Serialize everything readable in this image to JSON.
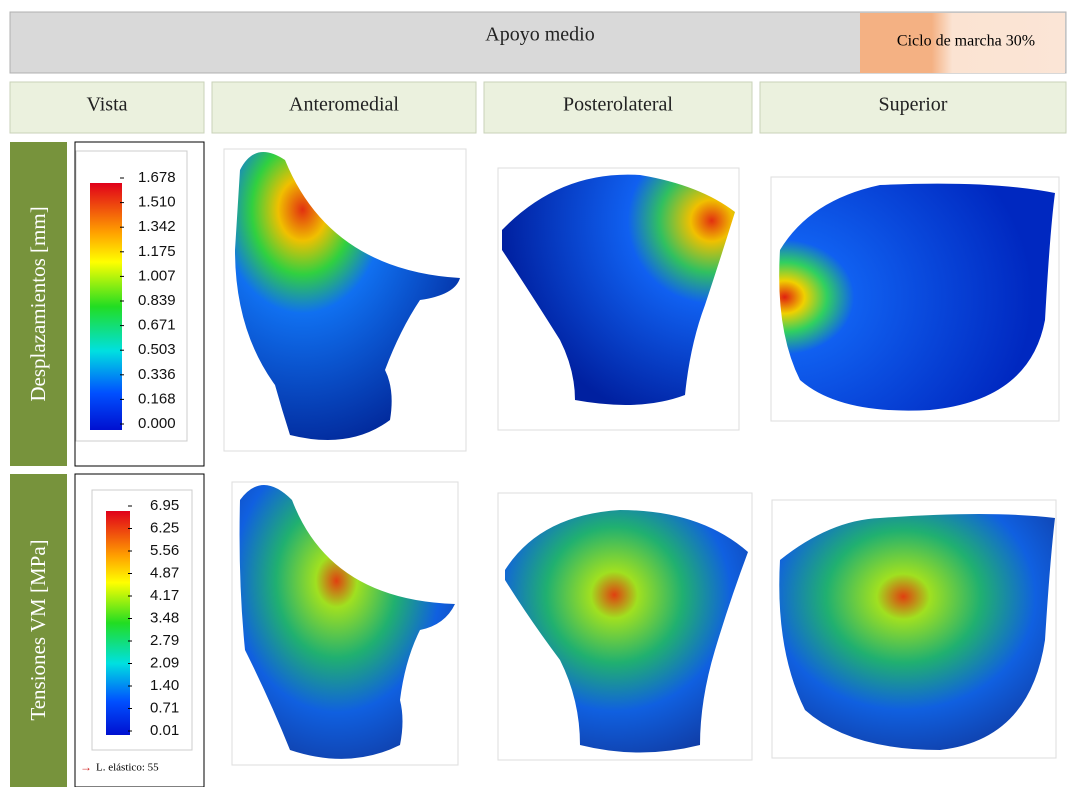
{
  "header": {
    "title": "Apoyo medio",
    "badge": "Ciclo de marcha 30%"
  },
  "columns": [
    "Vista",
    "Anteromedial",
    "Posterolateral",
    "Superior"
  ],
  "rows": [
    {
      "label": "Desplazamientos [mm]",
      "legend": [
        "1.678",
        "1.510",
        "1.342",
        "1.175",
        "1.007",
        "0.839",
        "0.671",
        "0.503",
        "0.336",
        "0.168",
        "0.000"
      ]
    },
    {
      "label": "Tensiones VM [MPa]",
      "legend": [
        "6.95",
        "6.25",
        "5.56",
        "4.87",
        "4.17",
        "3.48",
        "2.79",
        "2.09",
        "1.40",
        "0.71",
        "0.01"
      ],
      "note": "L. elástico: 55"
    }
  ]
}
